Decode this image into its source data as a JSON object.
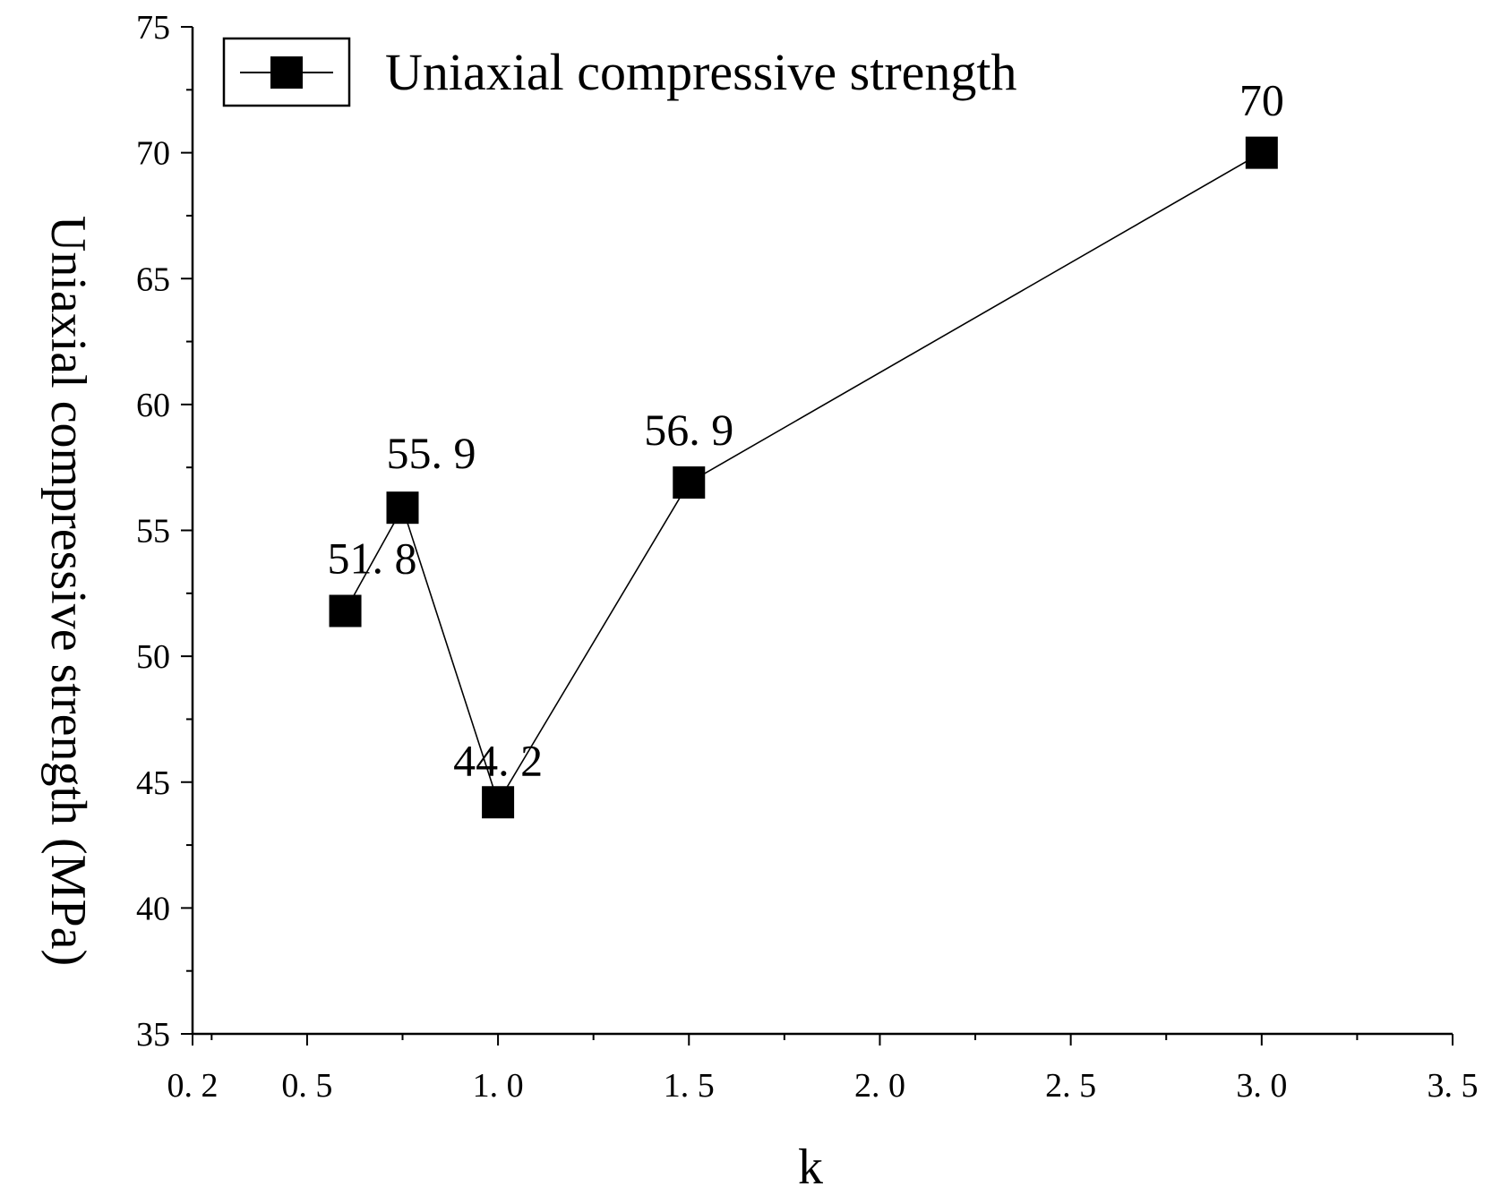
{
  "chart_data": {
    "type": "line",
    "xlabel": "k",
    "ylabel": "Uniaxial compressive strength (MPa)",
    "xlim": [
      0.2,
      3.5
    ],
    "ylim": [
      35,
      75
    ],
    "x_ticks": [
      0.2,
      0.5,
      1.0,
      1.5,
      2.0,
      2.5,
      3.0,
      3.5
    ],
    "x_tick_labels": [
      "0. 2",
      "0. 5",
      "1. 0",
      "1. 5",
      "2. 0",
      "2. 5",
      "3. 0",
      "3. 5"
    ],
    "y_ticks": [
      35,
      40,
      45,
      50,
      55,
      60,
      65,
      70,
      75
    ],
    "y_tick_labels": [
      "35",
      "40",
      "45",
      "50",
      "55",
      "60",
      "65",
      "70",
      "75"
    ],
    "grid": false,
    "legend_position": "top-left",
    "series": [
      {
        "name": "Uniaxial compressive strength",
        "color": "#000000",
        "marker": "square",
        "x": [
          0.6,
          0.75,
          1.0,
          1.5,
          3.0
        ],
        "y": [
          51.8,
          55.9,
          44.2,
          56.9,
          70
        ],
        "labels": [
          "51. 8",
          "55. 9",
          "44. 2",
          "56. 9",
          "70"
        ]
      }
    ]
  }
}
